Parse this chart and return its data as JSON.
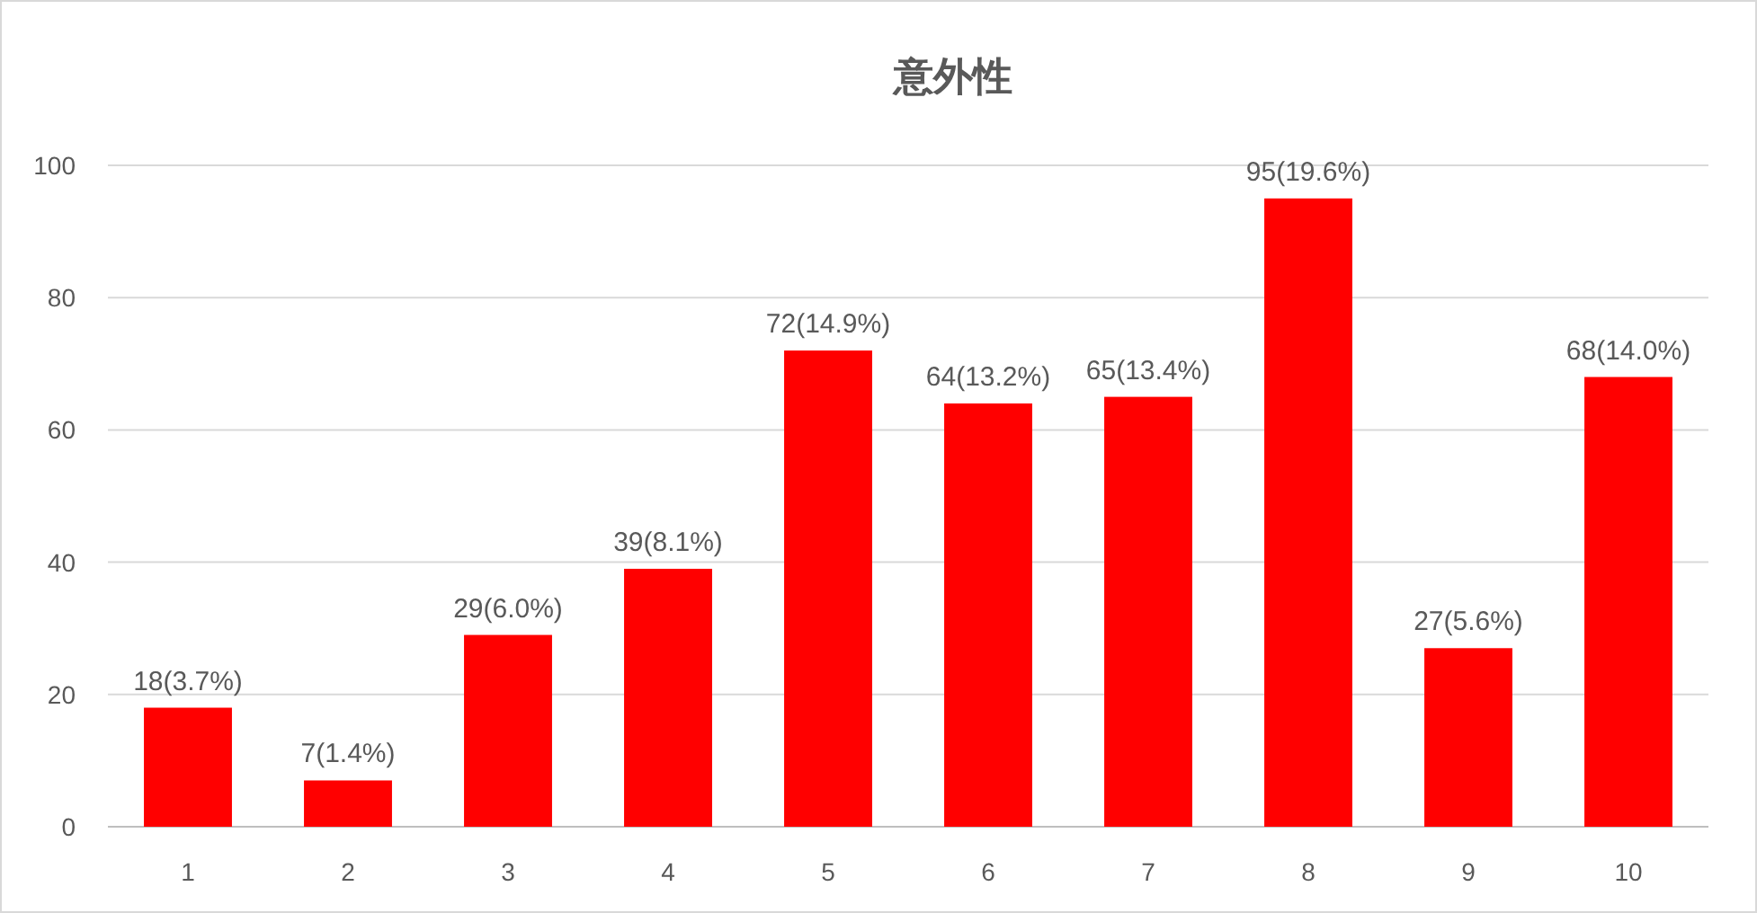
{
  "chart_data": {
    "type": "bar",
    "title": "意外性",
    "categories": [
      "1",
      "2",
      "3",
      "4",
      "5",
      "6",
      "7",
      "8",
      "9",
      "10"
    ],
    "values": [
      18,
      7,
      29,
      39,
      72,
      64,
      65,
      95,
      27,
      68
    ],
    "value_labels": [
      "18(3.7%)",
      "7(1.4%)",
      "29(6.0%)",
      "39(8.1%)",
      "72(14.9%)",
      "64(13.2%)",
      "65(13.4%)",
      "95(19.6%)",
      "27(5.6%)",
      "68(14.0%)"
    ],
    "color": "#ff0000",
    "ylim": [
      0,
      100
    ],
    "yticks": [
      0,
      20,
      40,
      60,
      80,
      100
    ],
    "grid": "y"
  }
}
